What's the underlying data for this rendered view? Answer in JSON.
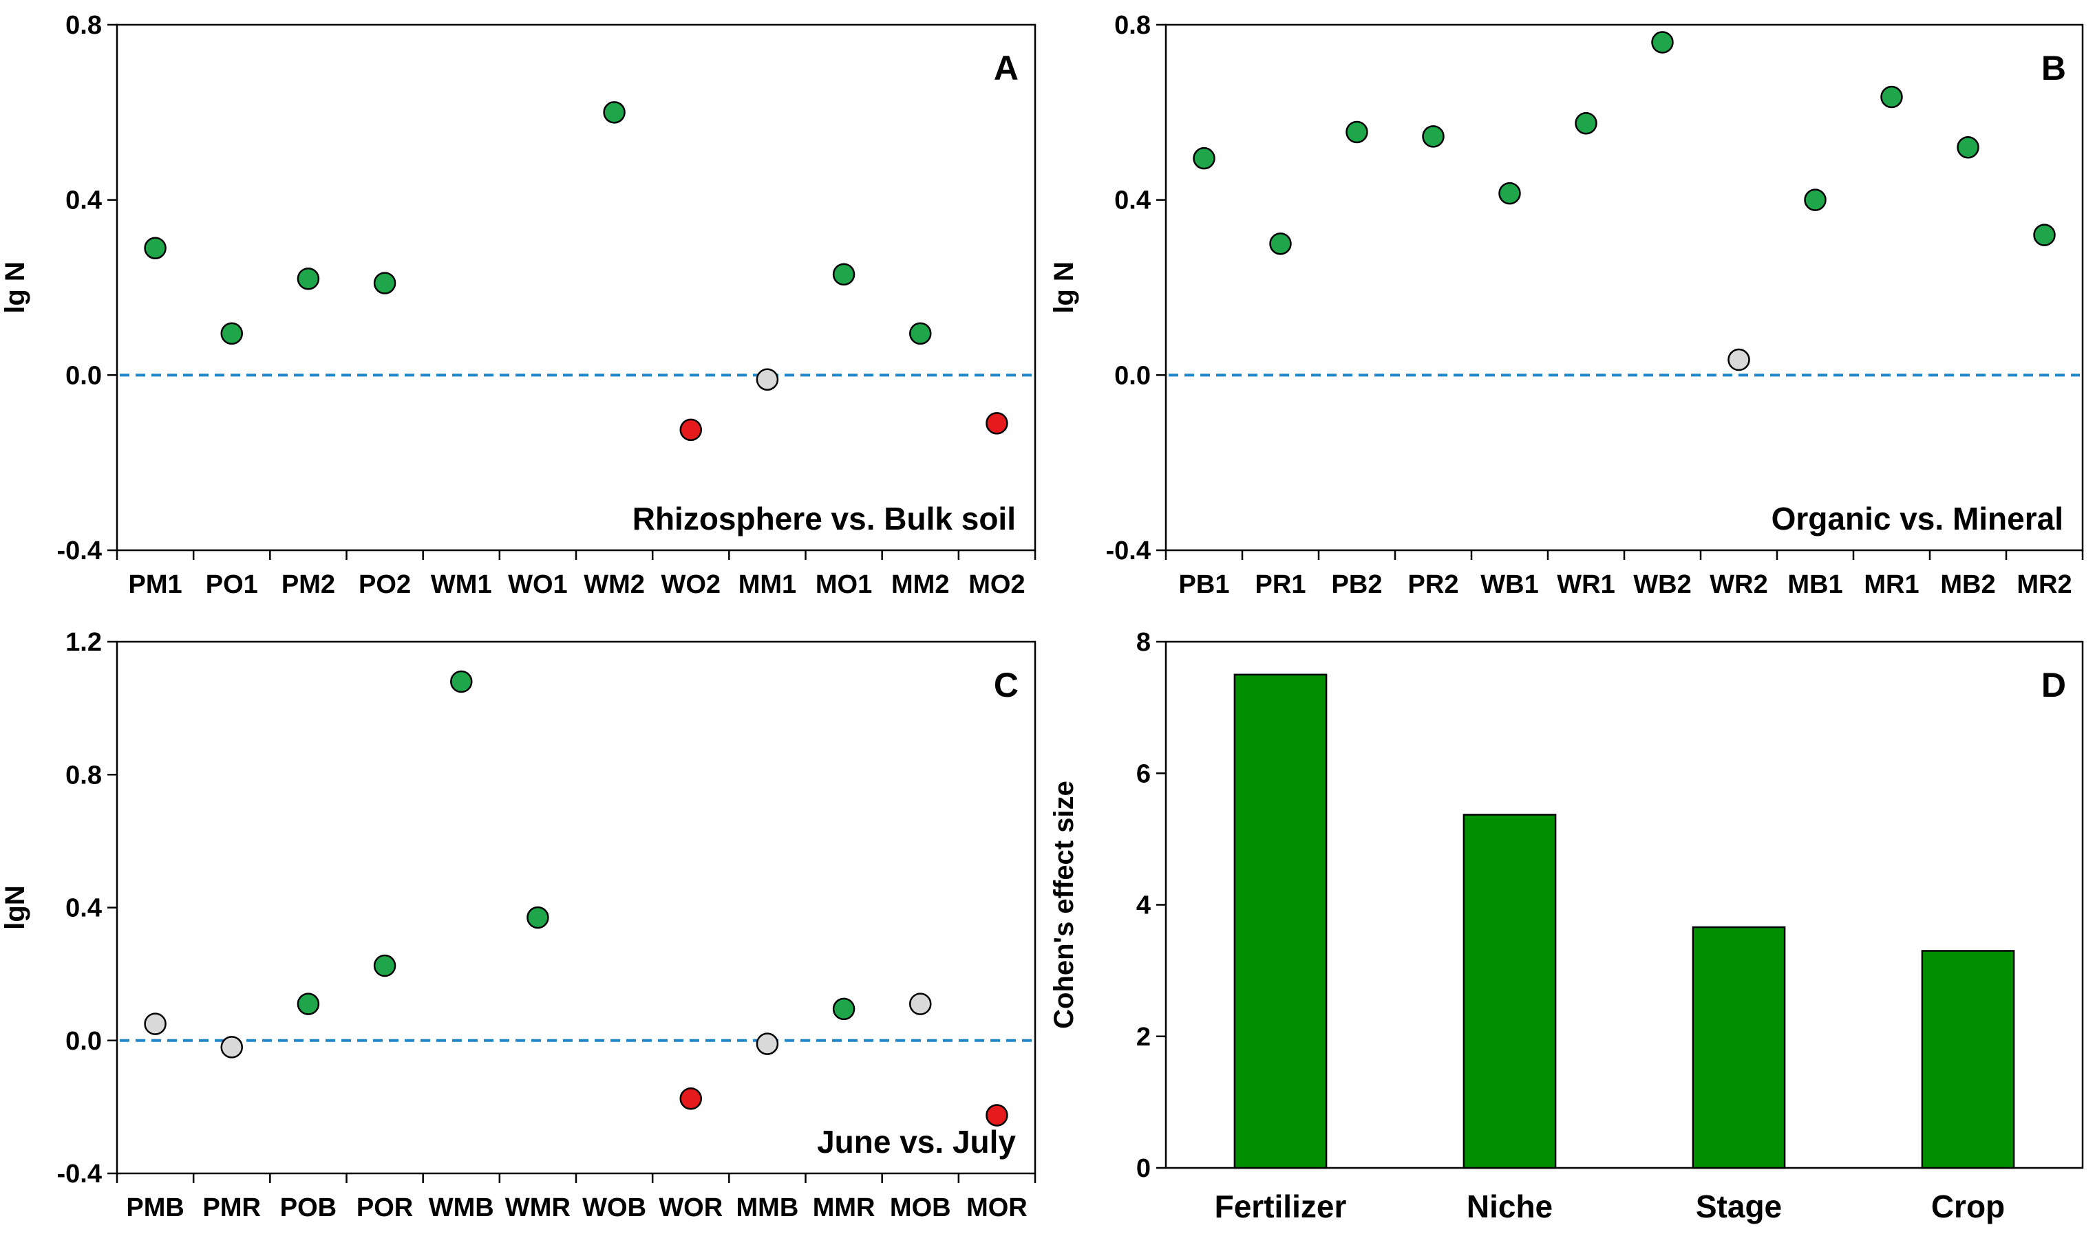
{
  "colors": {
    "positive": "#1fa64a",
    "negative": "#e41a1c",
    "neutral": "#d9d9d9",
    "bar": "#008f00",
    "baseline": "#1f86c8"
  },
  "chart_data": [
    {
      "id": "A",
      "type": "scatter",
      "panel_label": "A",
      "annotation": "Rhizosphere vs. Bulk soil",
      "ylabel": "lg N",
      "ylim": [
        -0.4,
        0.8
      ],
      "yticks": [
        "-0.4",
        "0.0",
        "0.4",
        "0.8"
      ],
      "categories": [
        "PM1",
        "PO1",
        "PM2",
        "PO2",
        "WM1",
        "WO1",
        "WM2",
        "WO2",
        "MM1",
        "MO1",
        "MM2",
        "MO2"
      ],
      "values": [
        0.29,
        0.095,
        0.22,
        0.21,
        null,
        null,
        0.6,
        -0.125,
        -0.01,
        0.23,
        0.095,
        -0.11
      ],
      "status": [
        "pos",
        "pos",
        "pos",
        "pos",
        null,
        null,
        "pos",
        "neg",
        "neu",
        "pos",
        "pos",
        "neg"
      ],
      "baseline": 0.0
    },
    {
      "id": "B",
      "type": "scatter",
      "panel_label": "B",
      "annotation": "Organic vs. Mineral",
      "ylabel": "lg N",
      "ylim": [
        -0.4,
        0.8
      ],
      "yticks": [
        "-0.4",
        "0.0",
        "0.4",
        "0.8"
      ],
      "categories": [
        "PB1",
        "PR1",
        "PB2",
        "PR2",
        "WB1",
        "WR1",
        "WB2",
        "WR2",
        "MB1",
        "MR1",
        "MB2",
        "MR2"
      ],
      "values": [
        0.495,
        0.3,
        0.555,
        0.545,
        0.415,
        0.575,
        0.76,
        0.035,
        0.4,
        0.635,
        0.52,
        0.32
      ],
      "status": [
        "pos",
        "pos",
        "pos",
        "pos",
        "pos",
        "pos",
        "pos",
        "neu",
        "pos",
        "pos",
        "pos",
        "pos"
      ],
      "baseline": 0.0
    },
    {
      "id": "C",
      "type": "scatter",
      "panel_label": "C",
      "annotation": "June vs. July",
      "ylabel": "lgN",
      "ylim": [
        -0.4,
        1.2
      ],
      "yticks": [
        "-0.4",
        "0.0",
        "0.4",
        "0.8",
        "1.2"
      ],
      "categories": [
        "PMB",
        "PMR",
        "POB",
        "POR",
        "WMB",
        "WMR",
        "WOB",
        "WOR",
        "MMB",
        "MMR",
        "MOB",
        "MOR"
      ],
      "values": [
        0.05,
        -0.02,
        0.11,
        0.225,
        1.08,
        0.37,
        null,
        -0.175,
        -0.01,
        0.095,
        0.11,
        -0.225
      ],
      "status": [
        "neu",
        "neu",
        "pos",
        "pos",
        "pos",
        "pos",
        null,
        "neg",
        "neu",
        "pos",
        "neu",
        "neg"
      ],
      "baseline": 0.0
    },
    {
      "id": "D",
      "type": "bar",
      "panel_label": "D",
      "ylabel": "Cohen's effect size",
      "ylim": [
        0,
        8
      ],
      "yticks": [
        "0",
        "2",
        "4",
        "6",
        "8"
      ],
      "categories": [
        "Fertilizer",
        "Niche",
        "Stage",
        "Crop"
      ],
      "values": [
        7.5,
        5.37,
        3.66,
        3.3
      ]
    }
  ]
}
